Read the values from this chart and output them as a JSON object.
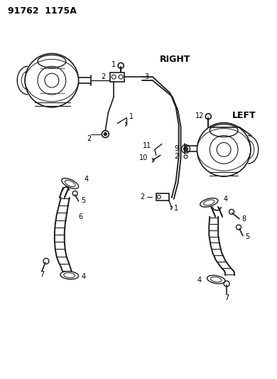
{
  "title": "91762  1175A",
  "right_label": "RIGHT",
  "left_label": "LEFT",
  "bg_color": "#ffffff",
  "line_color": "#1a1a1a",
  "title_fontsize": 9,
  "label_fontsize": 8.5,
  "part_num_fontsize": 7
}
